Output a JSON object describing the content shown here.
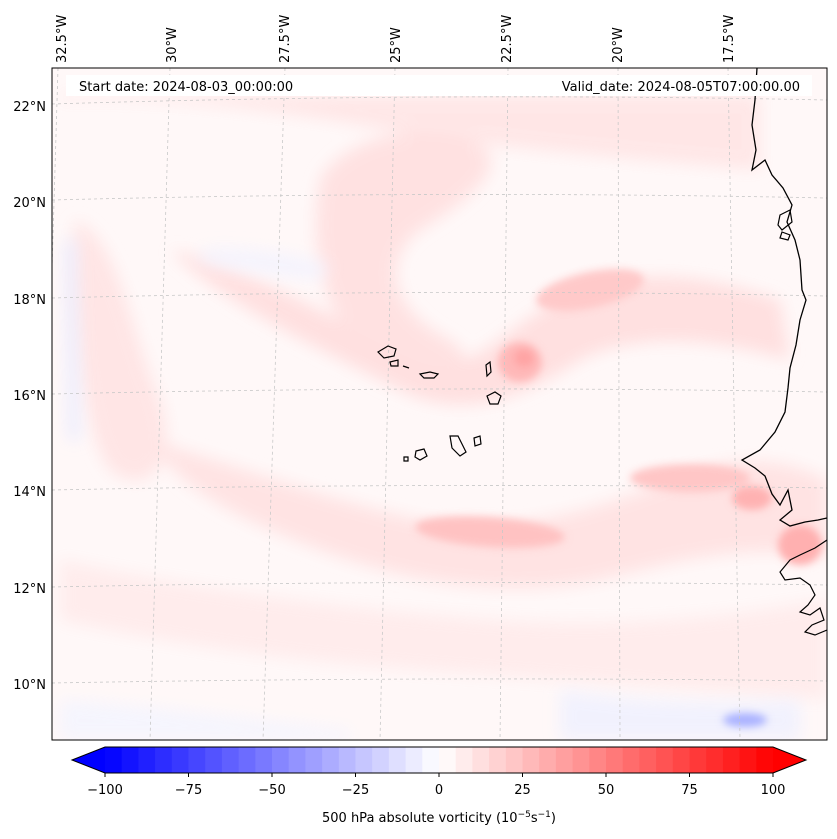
{
  "map": {
    "start_label": "Start date: 2024-08-03_00:00:00",
    "valid_label": "Valid_date: 2024-08-05T07:00:00.00",
    "lon_labels": [
      "32.5°W",
      "30°W",
      "27.5°W",
      "25°W",
      "22.5°W",
      "20°W",
      "17.5°W"
    ],
    "lat_labels": [
      "22°N",
      "20°N",
      "18°N",
      "16°N",
      "14°N",
      "12°N",
      "10°N"
    ],
    "land_color": "#000000",
    "features": [
      "tropical-wave-vorticity-lobe",
      "cabo-verde-vorticity-maximum",
      "west-africa-coast-vorticity-band"
    ]
  },
  "colorbar": {
    "label_prefix": "500 hPa absolute vorticity (10",
    "label_exp1": "−5",
    "label_mid": "s",
    "label_exp2": "−1",
    "label_suffix": ")",
    "ticks": [
      "−100",
      "−75",
      "−50",
      "−25",
      "0",
      "25",
      "50",
      "75",
      "100"
    ],
    "vmin": -100,
    "vmax": 100,
    "levels": 40,
    "cmap_low": "#0000ff",
    "cmap_mid": "#ffffff",
    "cmap_high": "#ff0000"
  }
}
